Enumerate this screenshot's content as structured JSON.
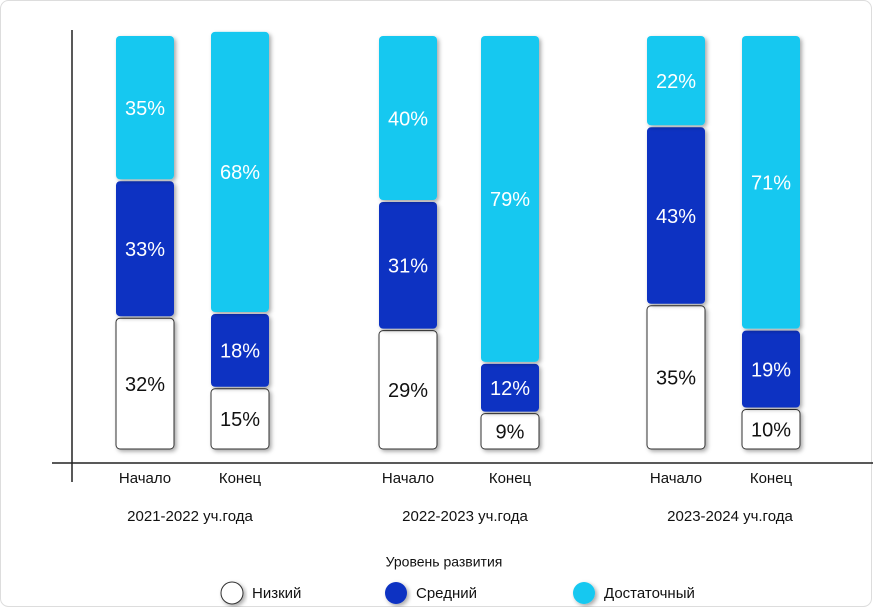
{
  "chart_data": {
    "type": "stacked_bar",
    "categories": [
      "Начало",
      "Конец",
      "Начало",
      "Конец",
      "Начало",
      "Конец"
    ],
    "group_labels": [
      "2021-2022 уч.года",
      "2022-2023 уч.года",
      "2023-2024 уч.года"
    ],
    "legend_title": "Уровень развития",
    "ylim": [
      0,
      100
    ],
    "series": [
      {
        "name": "Низкий",
        "color": "#ffffff",
        "values": [
          32,
          15,
          29,
          9,
          35,
          10
        ],
        "value_labels": [
          "32%",
          "15%",
          "29%",
          "9%",
          "35%",
          "10%"
        ]
      },
      {
        "name": "Средний",
        "color": "#0a32c2",
        "values": [
          33,
          18,
          31,
          12,
          43,
          19
        ],
        "value_labels": [
          "33%",
          "18%",
          "31%",
          "12%",
          "43%",
          "19%"
        ]
      },
      {
        "name": "Достаточный",
        "color": "#14c8f0",
        "values": [
          35,
          68,
          40,
          79,
          22,
          71
        ],
        "value_labels": [
          "35%",
          "68%",
          "40%",
          "79%",
          "22%",
          "71%"
        ]
      }
    ],
    "legend": "bottom"
  }
}
